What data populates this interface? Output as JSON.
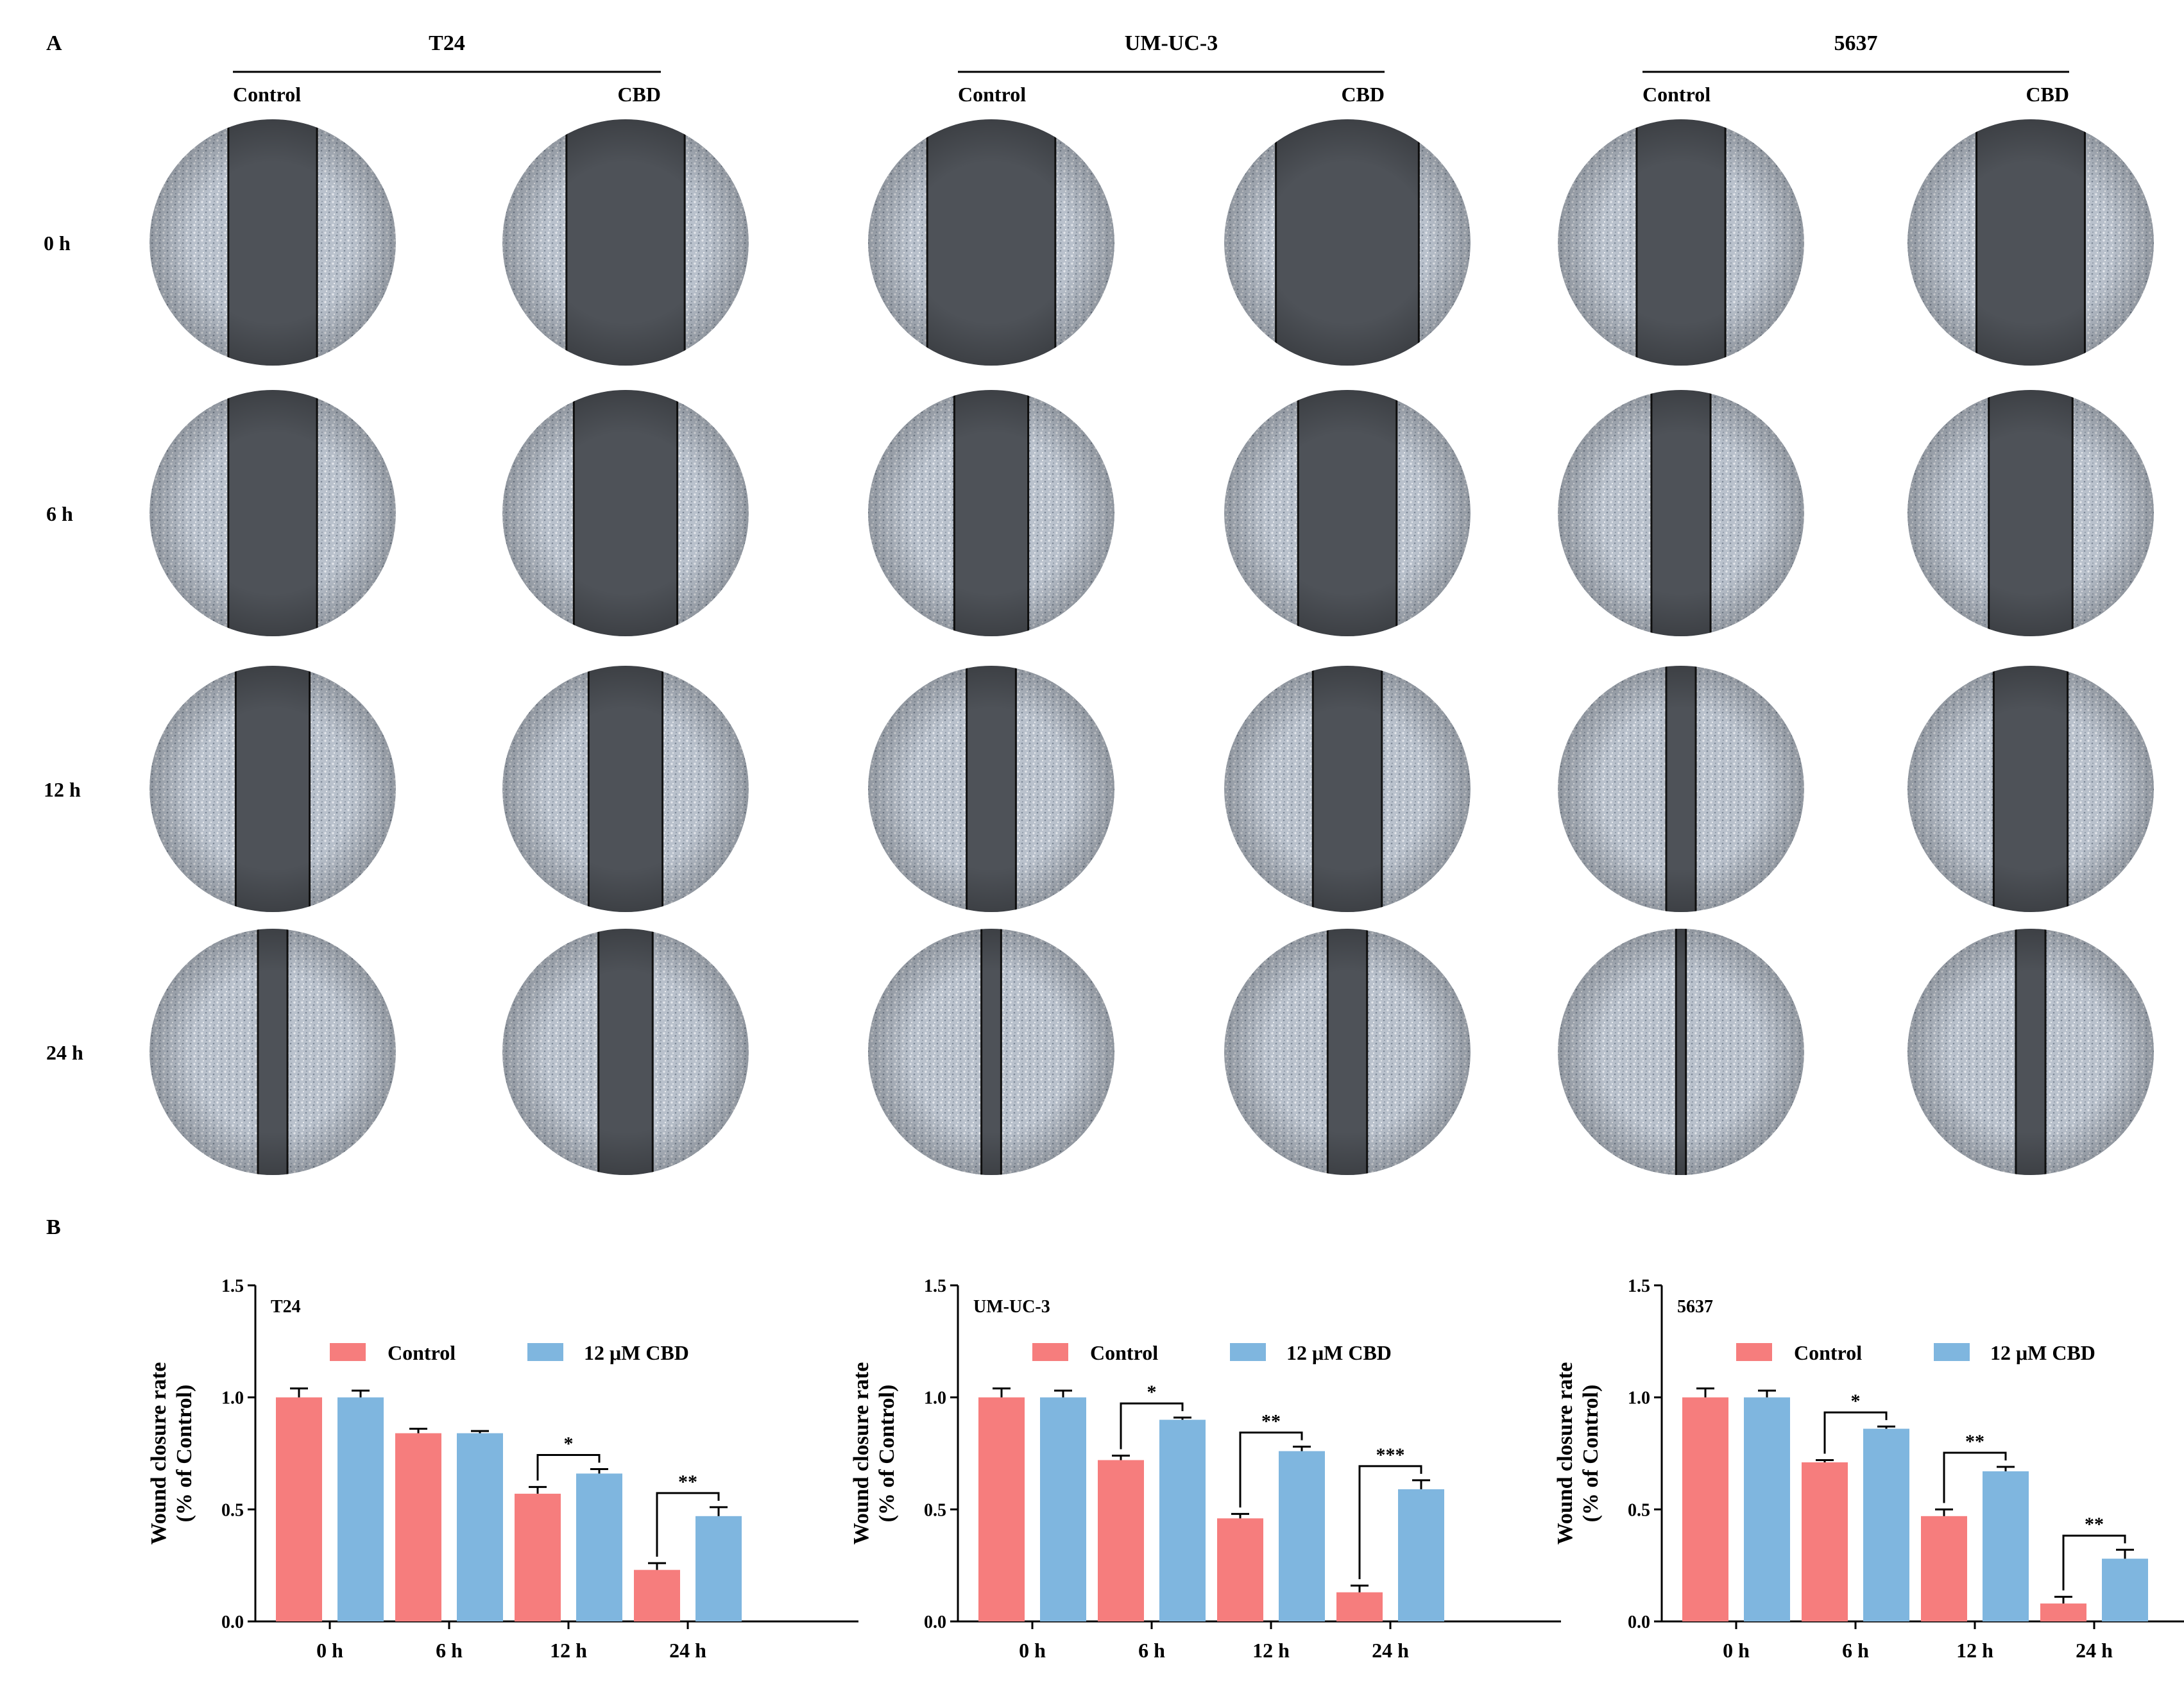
{
  "panel_a": {
    "label": "A",
    "cell_lines": [
      {
        "name": "T24",
        "conditions": [
          "Control",
          "CBD"
        ]
      },
      {
        "name": "UM-UC-3",
        "conditions": [
          "Control",
          "CBD"
        ]
      },
      {
        "name": "5637",
        "conditions": [
          "Control",
          "CBD"
        ]
      }
    ],
    "timepoints": [
      "0 h",
      "6 h",
      "12 h",
      "24 h"
    ],
    "wound_gap_fraction": [
      [
        [
          0.36,
          0.36,
          0.3,
          0.12
        ],
        [
          0.48,
          0.42,
          0.3,
          0.22
        ]
      ],
      [
        [
          0.52,
          0.3,
          0.2,
          0.08
        ],
        [
          0.58,
          0.4,
          0.28,
          0.16
        ]
      ],
      [
        [
          0.36,
          0.24,
          0.12,
          0.04
        ],
        [
          0.44,
          0.34,
          0.3,
          0.12
        ]
      ]
    ],
    "colors": {
      "cells": "#b9c1cc",
      "gap": "#4e5258",
      "line": "#111111"
    }
  },
  "panel_b": {
    "label": "B",
    "colors": {
      "control": "#f67d7d",
      "cbd": "#7fb6df",
      "axis": "#000000"
    },
    "charts": [
      {
        "title": "T24"
      },
      {
        "title": "UM-UC-3"
      },
      {
        "title": "5637"
      }
    ]
  },
  "chart_data": [
    {
      "type": "bar",
      "title": "T24",
      "xlabel": "",
      "ylabel": "Wound closure rate",
      "ylabel2": "(% of Control)",
      "ylim": [
        0.0,
        1.5
      ],
      "yticks": [
        "0.0",
        "0.5",
        "1.0",
        "1.5"
      ],
      "categories": [
        "0 h",
        "6 h",
        "12 h",
        "24 h"
      ],
      "series": [
        {
          "name": "Control",
          "values": [
            1.0,
            0.84,
            0.57,
            0.23
          ],
          "errors": [
            0.04,
            0.02,
            0.03,
            0.03
          ]
        },
        {
          "name": "12 μM CBD",
          "values": [
            1.0,
            0.84,
            0.66,
            0.47
          ],
          "errors": [
            0.03,
            0.01,
            0.02,
            0.04
          ]
        }
      ],
      "significance": [
        "",
        "",
        "*",
        "**"
      ]
    },
    {
      "type": "bar",
      "title": "UM-UC-3",
      "xlabel": "",
      "ylabel": "Wound closure rate",
      "ylabel2": "(% of Control)",
      "ylim": [
        0.0,
        1.5
      ],
      "yticks": [
        "0.0",
        "0.5",
        "1.0",
        "1.5"
      ],
      "categories": [
        "0 h",
        "6 h",
        "12 h",
        "24 h"
      ],
      "series": [
        {
          "name": "Control",
          "values": [
            1.0,
            0.72,
            0.46,
            0.13
          ],
          "errors": [
            0.04,
            0.02,
            0.02,
            0.03
          ]
        },
        {
          "name": "12 μM CBD",
          "values": [
            1.0,
            0.9,
            0.76,
            0.59
          ],
          "errors": [
            0.03,
            0.01,
            0.02,
            0.04
          ]
        }
      ],
      "significance": [
        "",
        "*",
        "**",
        "***"
      ]
    },
    {
      "type": "bar",
      "title": "5637",
      "xlabel": "",
      "ylabel": "Wound closure rate",
      "ylabel2": "(% of Control)",
      "ylim": [
        0.0,
        1.5
      ],
      "yticks": [
        "0.0",
        "0.5",
        "1.0",
        "1.5"
      ],
      "categories": [
        "0 h",
        "6 h",
        "12 h",
        "24 h"
      ],
      "series": [
        {
          "name": "Control",
          "values": [
            1.0,
            0.71,
            0.47,
            0.08
          ],
          "errors": [
            0.04,
            0.01,
            0.03,
            0.03
          ]
        },
        {
          "name": "12 μM CBD",
          "values": [
            1.0,
            0.86,
            0.67,
            0.28
          ],
          "errors": [
            0.03,
            0.01,
            0.02,
            0.04
          ]
        }
      ],
      "significance": [
        "",
        "*",
        "**",
        "**"
      ]
    }
  ]
}
